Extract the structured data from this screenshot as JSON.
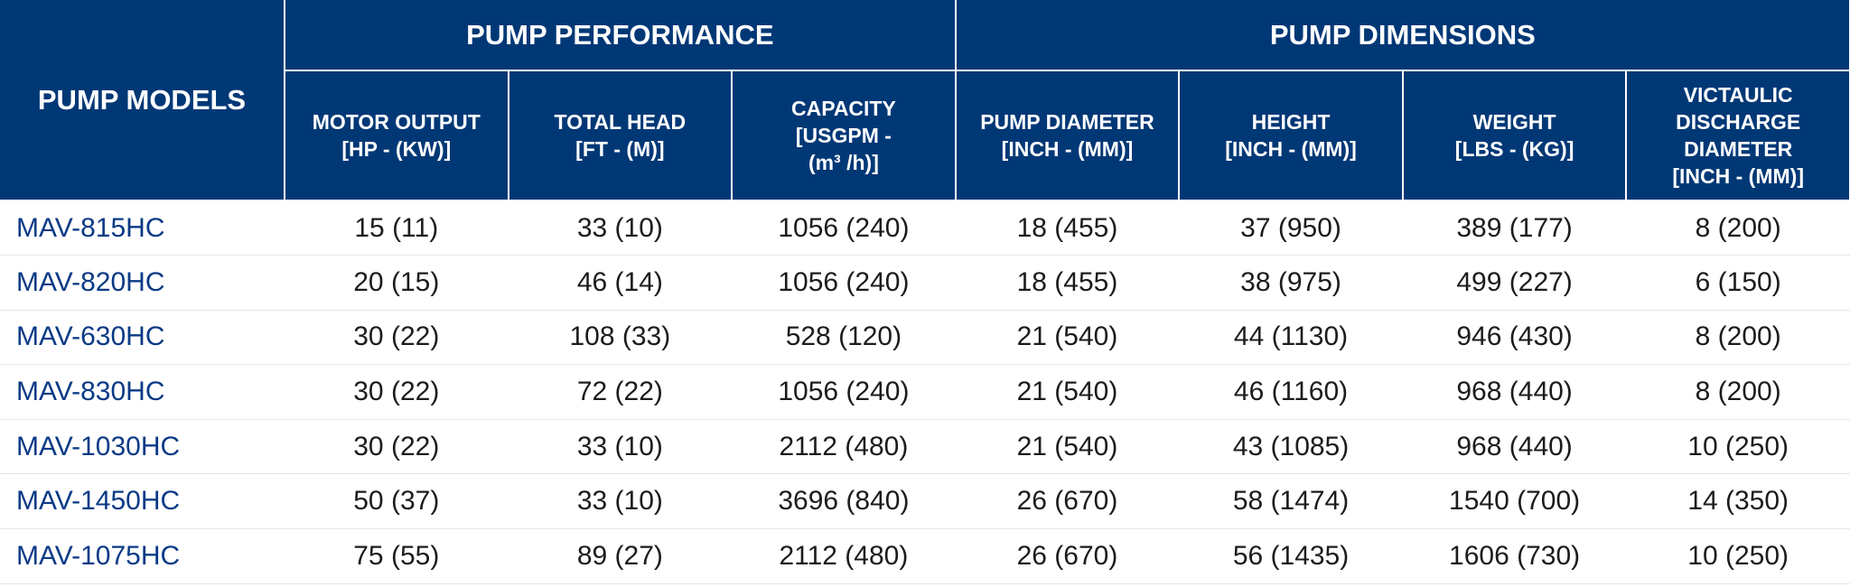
{
  "header": {
    "models": "PUMP MODELS",
    "groups": {
      "performance": "PUMP PERFORMANCE",
      "dimensions": "PUMP DIMENSIONS"
    },
    "columns": [
      "MOTOR OUTPUT\n[HP - (KW)]",
      "TOTAL HEAD\n[FT - (M)]",
      "CAPACITY\n[USGPM -\n(m³ /h)]",
      "PUMP DIAMETER\n[INCH - (MM)]",
      "HEIGHT\n[INCH - (MM)]",
      "WEIGHT\n[LBS - (KG)]",
      "VICTAULIC\nDISCHARGE\nDIAMETER\n[INCH - (MM)]"
    ]
  },
  "rows": [
    [
      "MAV-815HC",
      "15 (11)",
      "33 (10)",
      "1056 (240)",
      "18 (455)",
      "37 (950)",
      "389 (177)",
      "8 (200)"
    ],
    [
      "MAV-820HC",
      "20 (15)",
      "46 (14)",
      "1056 (240)",
      "18 (455)",
      "38 (975)",
      "499 (227)",
      "6 (150)"
    ],
    [
      "MAV-630HC",
      "30 (22)",
      "108 (33)",
      "528 (120)",
      "21 (540)",
      "44 (1130)",
      "946 (430)",
      "8 (200)"
    ],
    [
      "MAV-830HC",
      "30 (22)",
      "72 (22)",
      "1056 (240)",
      "21 (540)",
      "46 (1160)",
      "968 (440)",
      "8 (200)"
    ],
    [
      "MAV-1030HC",
      "30 (22)",
      "33 (10)",
      "2112 (480)",
      "21 (540)",
      "43 (1085)",
      "968 (440)",
      "10 (250)"
    ],
    [
      "MAV-1450HC",
      "50 (37)",
      "33 (10)",
      "3696 (840)",
      "26 (670)",
      "58 (1474)",
      "1540 (700)",
      "14 (350)"
    ],
    [
      "MAV-1075HC",
      "75 (55)",
      "89 (27)",
      "2112 (480)",
      "26 (670)",
      "56 (1435)",
      "1606 (730)",
      "10 (250)"
    ]
  ],
  "colors": {
    "header_bg": "#003876",
    "header_text": "#ffffff",
    "model_text": "#0a3a86",
    "cell_text": "#1c1c1c"
  }
}
